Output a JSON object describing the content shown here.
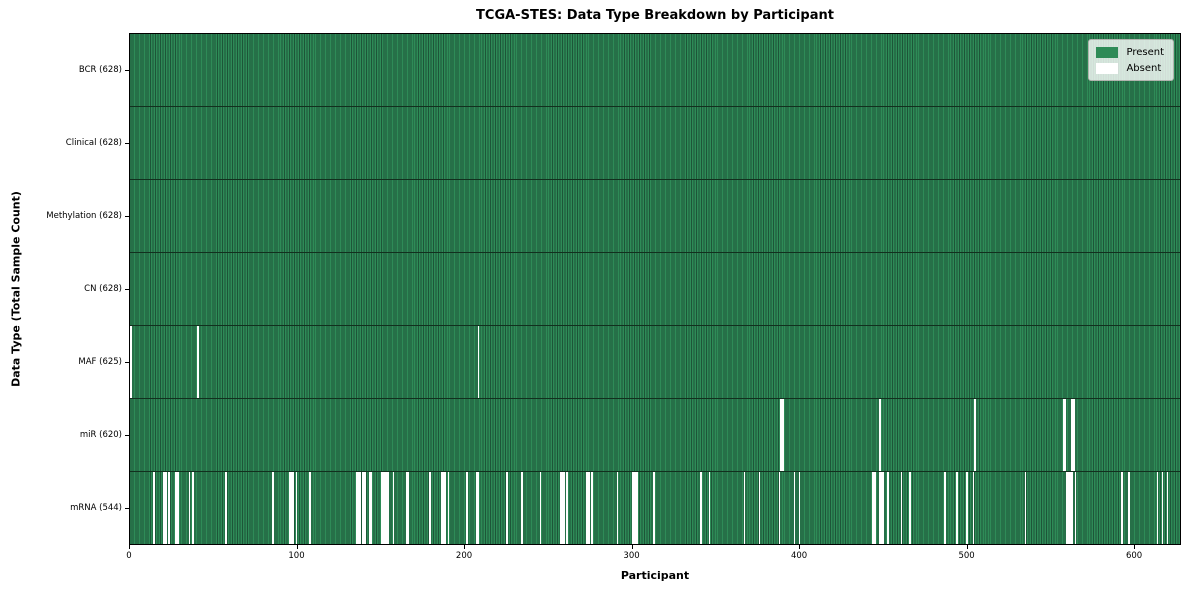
{
  "chart_data": {
    "type": "heatmap",
    "title": "TCGA-STES: Data Type Breakdown by Participant",
    "xlabel": "Participant",
    "ylabel": "Data Type (Total Sample Count)",
    "x_ticks": [
      0,
      100,
      200,
      300,
      400,
      500,
      600
    ],
    "n_participants": 628,
    "xlim": [
      0,
      628
    ],
    "grid": false,
    "legend_position": "upper right",
    "legend": [
      {
        "label": "Present",
        "color": "#2e8b57"
      },
      {
        "label": "Absent",
        "color": "#ffffff"
      }
    ],
    "colors": {
      "present": "#2e8b57",
      "present_edge": "#1d5638",
      "absent": "#ffffff",
      "row_separator": "#12301e",
      "legend_bg": "#e9ece6"
    },
    "rows": [
      {
        "label": "BCR (628)",
        "data_type": "BCR",
        "present_count": 628,
        "absent_participants": []
      },
      {
        "label": "Clinical (628)",
        "data_type": "Clinical",
        "present_count": 628,
        "absent_participants": []
      },
      {
        "label": "Methylation (628)",
        "data_type": "Methylation",
        "present_count": 628,
        "absent_participants": []
      },
      {
        "label": "CN (628)",
        "data_type": "CN",
        "present_count": 628,
        "absent_participants": []
      },
      {
        "label": "MAF (625)",
        "data_type": "MAF",
        "present_count": 625,
        "absent_participants": [
          0,
          40,
          208
        ]
      },
      {
        "label": "miR (620)",
        "data_type": "miR",
        "present_count": 620,
        "absent_participants": [
          389,
          390,
          448,
          505,
          558,
          559,
          563,
          564
        ]
      },
      {
        "label": "mRNA (544)",
        "data_type": "mRNA",
        "present_count": 544,
        "absent_participants": [
          14,
          20,
          21,
          23,
          27,
          28,
          35,
          37,
          57,
          85,
          95,
          96,
          97,
          99,
          107,
          135,
          136,
          137,
          139,
          140,
          143,
          144,
          150,
          151,
          152,
          153,
          154,
          157,
          165,
          166,
          179,
          186,
          187,
          188,
          190,
          201,
          207,
          208,
          225,
          234,
          245,
          257,
          258,
          259,
          261,
          273,
          274,
          276,
          291,
          300,
          301,
          302,
          303,
          313,
          341,
          346,
          367,
          376,
          388,
          397,
          400,
          444,
          445,
          448,
          449,
          450,
          453,
          461,
          466,
          487,
          494,
          500,
          504,
          535,
          560,
          561,
          562,
          563,
          565,
          593,
          597,
          614,
          617,
          620
        ]
      }
    ]
  }
}
